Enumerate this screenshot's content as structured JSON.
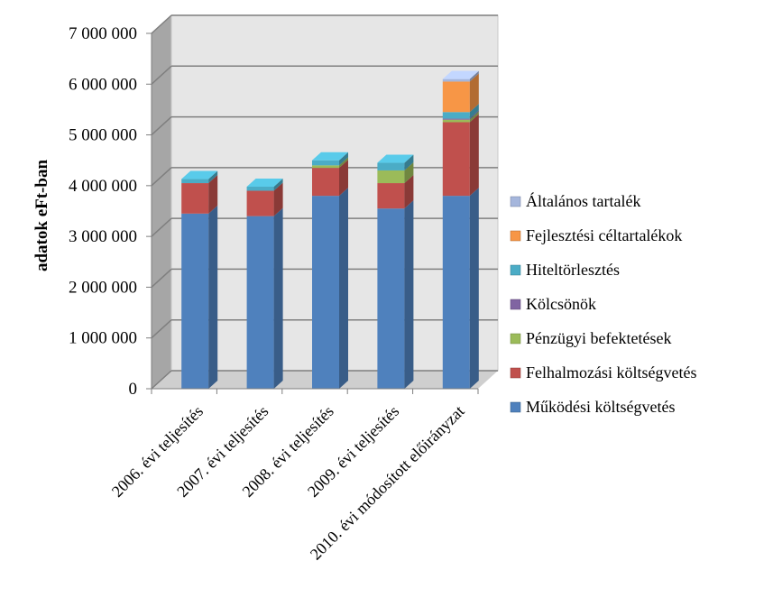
{
  "chart_data": {
    "type": "bar",
    "stacked": true,
    "three_d": true,
    "ylabel": "adatok eFt-ban",
    "xlabel": "",
    "ylim": [
      0,
      7000000
    ],
    "yticks": [
      0,
      1000000,
      2000000,
      3000000,
      4000000,
      5000000,
      6000000,
      7000000
    ],
    "ytick_labels": [
      "0",
      "1 000 000",
      "2 000 000",
      "3 000 000",
      "4 000 000",
      "5 000 000",
      "6 000 000",
      "7 000 000"
    ],
    "grid": true,
    "legend_position": "right",
    "categories": [
      "2006. évi teljesítés",
      "2007. évi teljesítés",
      "2008. évi teljesítés",
      "2009. évi teljesítés",
      "2010. évi módosított előirányzat"
    ],
    "series": [
      {
        "name": "Működési költségvetés",
        "color": "#4F81BD",
        "values": [
          3450000,
          3400000,
          3800000,
          3550000,
          3800000
        ]
      },
      {
        "name": "Felhalmozási költségvetés",
        "color": "#C0504D",
        "values": [
          600000,
          500000,
          550000,
          500000,
          1450000
        ]
      },
      {
        "name": "Pénzügyi befektetések",
        "color": "#9BBB59",
        "values": [
          0,
          0,
          50000,
          250000,
          50000
        ]
      },
      {
        "name": "Kölcsönök",
        "color": "#8064A2",
        "values": [
          0,
          0,
          0,
          0,
          20000
        ]
      },
      {
        "name": "Hiteltörlesztés",
        "color": "#4BACC6",
        "values": [
          80000,
          80000,
          100000,
          150000,
          130000
        ]
      },
      {
        "name": "Fejlesztési céltartalékok",
        "color": "#F79646",
        "values": [
          0,
          0,
          0,
          0,
          600000
        ]
      },
      {
        "name": "Általános tartalék",
        "color": "#A5B6DC",
        "values": [
          0,
          0,
          0,
          0,
          50000
        ]
      }
    ],
    "legend_order": [
      "Általános tartalék",
      "Fejlesztési céltartalékok",
      "Hiteltörlesztés",
      "Kölcsönök",
      "Pénzügyi befektetések",
      "Felhalmozási költségvetés",
      "Működési költségvetés"
    ]
  }
}
